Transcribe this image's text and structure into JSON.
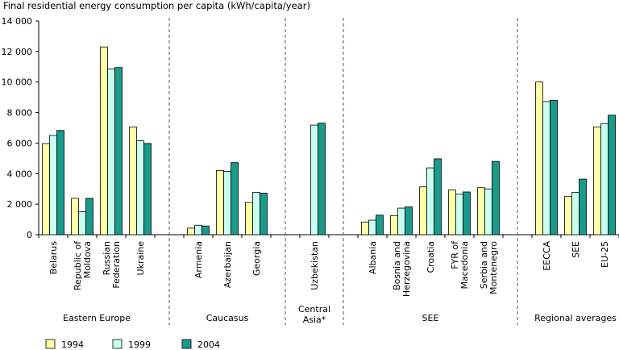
{
  "chart_data": {
    "type": "bar",
    "title": "Final residential energy consumption per capita (kWh/capita/year)",
    "xlabel": "",
    "ylabel": "",
    "ylim": [
      0,
      14000
    ],
    "yticks": [
      "0",
      "2 000",
      "4 000",
      "6 000",
      "8 000",
      "10 000",
      "12 000",
      "14 000"
    ],
    "legend_position": "bottom-left",
    "grid": false,
    "groups": [
      {
        "label": "Eastern Europe",
        "categories": [
          {
            "name": "Belarus",
            "lines": [
              "Belarus"
            ]
          },
          {
            "name": "Republic of Moldova",
            "lines": [
              "Republic of",
              "Moldova"
            ]
          },
          {
            "name": "Russian Federation",
            "lines": [
              "Russian",
              "Federation"
            ]
          },
          {
            "name": "Ukraine",
            "lines": [
              "Ukraine"
            ]
          }
        ]
      },
      {
        "label": "Caucasus",
        "categories": [
          {
            "name": "Armenia",
            "lines": [
              "Armenia"
            ]
          },
          {
            "name": "Azerbaijan",
            "lines": [
              "Azerbaijan"
            ]
          },
          {
            "name": "Georgia",
            "lines": [
              "Georgia"
            ]
          }
        ]
      },
      {
        "label": "Central Asia*",
        "label_lines": [
          "Central",
          "Asia*"
        ],
        "categories": [
          {
            "name": "Uzbekistan",
            "lines": [
              "Uzbekistan"
            ]
          }
        ]
      },
      {
        "label": "SEE",
        "categories": [
          {
            "name": "Albania",
            "lines": [
              "Albania"
            ]
          },
          {
            "name": "Bosnia and Herzegovina",
            "lines": [
              "Bosnia and",
              "Herzegovina"
            ]
          },
          {
            "name": "Croatia",
            "lines": [
              "Croatia"
            ]
          },
          {
            "name": "FYR of Macedonia",
            "lines": [
              "FYR of",
              "Macedonia"
            ]
          },
          {
            "name": "Serbia and Montenegro",
            "lines": [
              "Serbia and",
              "Montenegro"
            ]
          }
        ]
      },
      {
        "label": "Regional averages",
        "categories": [
          {
            "name": "EECCA",
            "lines": [
              "EECCA"
            ]
          },
          {
            "name": "SEE",
            "lines": [
              "SEE"
            ]
          },
          {
            "name": "EU-25",
            "lines": [
              "EU-25"
            ]
          }
        ]
      }
    ],
    "series": [
      {
        "name": "1994",
        "color": "#ffffa8",
        "values": [
          5970,
          2380,
          12300,
          7050,
          430,
          4200,
          2110,
          null,
          830,
          1250,
          3130,
          2930,
          3080,
          10000,
          2500,
          7060
        ]
      },
      {
        "name": "1999",
        "color": "#c8fff0",
        "values": [
          6500,
          1500,
          10850,
          6150,
          620,
          4150,
          2770,
          7180,
          950,
          1740,
          4380,
          2650,
          3000,
          8720,
          2770,
          7280
        ]
      },
      {
        "name": "2004",
        "color": "#1a9a8a",
        "values": [
          6830,
          2380,
          10950,
          5980,
          570,
          4720,
          2720,
          7310,
          1280,
          1820,
          4970,
          2800,
          4800,
          8800,
          3640,
          7830
        ]
      }
    ]
  }
}
